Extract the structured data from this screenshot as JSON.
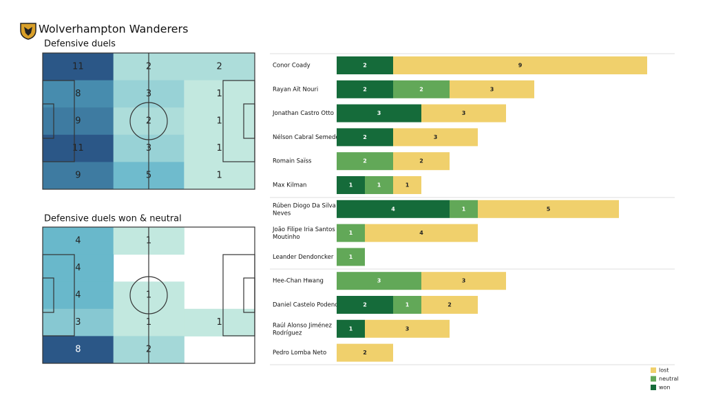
{
  "title": "Wolverhampton Wanderers",
  "chart_data": [
    {
      "type": "heatmap",
      "title": "Defensive duels",
      "values": [
        [
          11,
          2,
          2
        ],
        [
          8,
          3,
          1
        ],
        [
          9,
          2,
          1
        ],
        [
          11,
          3,
          1
        ],
        [
          9,
          5,
          1
        ]
      ],
      "colorscale": [
        "#c2e8df",
        "#5ab0c8",
        "#2b5787"
      ]
    },
    {
      "type": "heatmap",
      "title": "Defensive duels won & neutral",
      "values": [
        [
          4,
          1,
          null
        ],
        [
          4,
          null,
          null
        ],
        [
          4,
          1,
          null
        ],
        [
          3,
          1,
          1
        ],
        [
          8,
          2,
          null
        ]
      ],
      "colorscale": [
        "#c2e8df",
        "#5ab0c8",
        "#2b5787"
      ]
    },
    {
      "type": "stacked-bar",
      "orientation": "horizontal",
      "legend": "lower right",
      "categories": [
        "Conor  Coady",
        "Rayan Aït Nouri",
        "Jonathan Castro Otto",
        "Nélson Cabral Semedo",
        "Romain Saïss",
        "Max Kilman",
        "Rúben Diogo Da Silva Neves",
        "João Filipe Iria Santos Moutinho",
        "Leander Dendoncker",
        "Hee-Chan Hwang",
        "Daniel Castelo Podence",
        "Raúl Alonso Jiménez Rodríguez",
        "Pedro Lomba Neto"
      ],
      "series": [
        {
          "name": "won",
          "color": "#156b3a",
          "values": [
            2,
            2,
            3,
            2,
            null,
            1,
            4,
            null,
            null,
            null,
            2,
            1,
            null
          ]
        },
        {
          "name": "neutral",
          "color": "#62a858",
          "values": [
            null,
            2,
            null,
            null,
            2,
            1,
            1,
            1,
            1,
            3,
            1,
            null,
            null
          ]
        },
        {
          "name": "lost",
          "color": "#f0d06c",
          "values": [
            9,
            3,
            3,
            3,
            2,
            1,
            5,
            4,
            null,
            3,
            2,
            3,
            2
          ]
        }
      ]
    }
  ]
}
